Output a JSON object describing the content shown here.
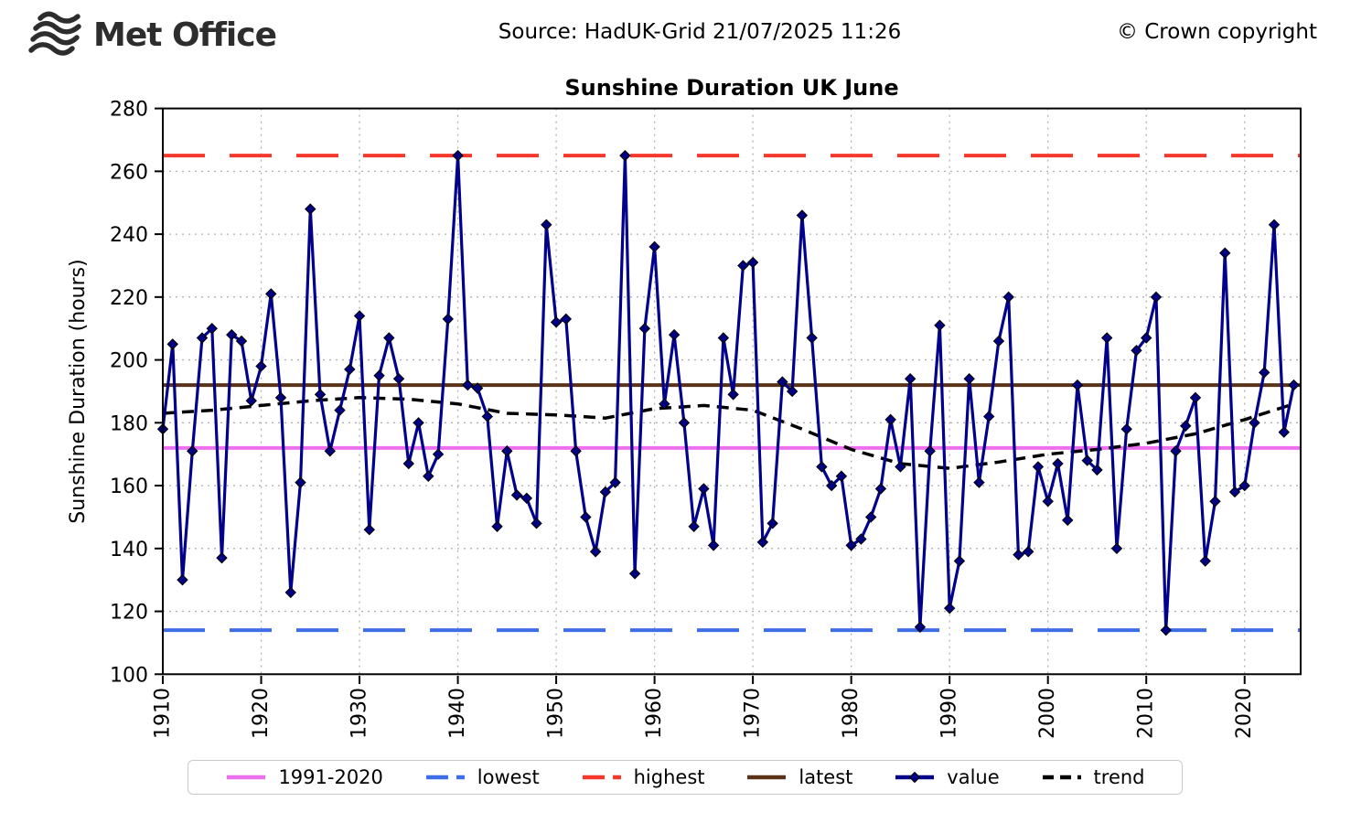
{
  "header": {
    "logo_text": "Met Office",
    "source": "Source: HadUK-Grid 21/07/2025 11:26",
    "copyright": "© Crown copyright"
  },
  "chart_data": {
    "type": "line",
    "title": "Sunshine Duration UK June",
    "ylabel": "Sunshine Duration (hours)",
    "xlabel": "",
    "ylim": [
      100,
      280
    ],
    "xlim": [
      1910,
      2025
    ],
    "yticks": [
      100,
      120,
      140,
      160,
      180,
      200,
      220,
      240,
      260,
      280
    ],
    "xticks": [
      1910,
      1920,
      1930,
      1940,
      1950,
      1960,
      1970,
      1980,
      1990,
      2000,
      2010,
      2020
    ],
    "grid": "dotted",
    "legend_position": "bottom",
    "x_start_year": 1910,
    "series": [
      {
        "name": "value",
        "color": "#00008b",
        "marker": "diamond",
        "values": [
          178,
          205,
          130,
          171,
          207,
          210,
          137,
          208,
          206,
          187,
          198,
          221,
          188,
          126,
          161,
          248,
          189,
          171,
          184,
          197,
          214,
          146,
          195,
          207,
          194,
          167,
          180,
          163,
          170,
          213,
          265,
          192,
          191,
          182,
          147,
          171,
          157,
          156,
          148,
          243,
          212,
          213,
          171,
          150,
          139,
          158,
          161,
          265,
          132,
          210,
          236,
          186,
          208,
          180,
          147,
          159,
          141,
          207,
          189,
          230,
          231,
          142,
          148,
          193,
          190,
          246,
          207,
          166,
          160,
          163,
          141,
          143,
          150,
          159,
          181,
          166,
          194,
          115,
          171,
          211,
          121,
          136,
          194,
          161,
          182,
          206,
          220,
          138,
          139,
          166,
          155,
          167,
          149,
          192,
          168,
          165,
          207,
          140,
          178,
          203,
          207,
          220,
          114,
          171,
          179,
          188,
          136,
          155,
          234,
          158,
          160,
          180,
          196,
          243,
          177,
          192
        ]
      },
      {
        "name": "trend",
        "color": "#000000",
        "style": "dashed",
        "x": [
          1910,
          1915,
          1920,
          1925,
          1930,
          1935,
          1940,
          1945,
          1950,
          1955,
          1960,
          1965,
          1970,
          1975,
          1980,
          1985,
          1990,
          1995,
          2000,
          2005,
          2010,
          2015,
          2020,
          2025
        ],
        "values": [
          183,
          184,
          185.5,
          187,
          188,
          187.5,
          186,
          183,
          182.5,
          181.5,
          184.5,
          185.5,
          184,
          178,
          171.5,
          167,
          165.5,
          167.5,
          170,
          171.5,
          173.5,
          176.5,
          181,
          186
        ]
      }
    ],
    "reference_lines": [
      {
        "name": "1991-2020",
        "value": 172,
        "color": "#ee6fee",
        "style": "solid"
      },
      {
        "name": "lowest",
        "value": 114,
        "color": "#3e6de8",
        "style": "dashed"
      },
      {
        "name": "highest",
        "value": 265,
        "color": "#f4392c",
        "style": "dashed"
      },
      {
        "name": "latest",
        "value": 192,
        "color": "#5a3217",
        "style": "solid"
      }
    ]
  },
  "legend": {
    "items": [
      {
        "label": "1991-2020",
        "color": "#ee6fee",
        "style": "solid"
      },
      {
        "label": "lowest",
        "color": "#3e6de8",
        "style": "dashed"
      },
      {
        "label": "highest",
        "color": "#f4392c",
        "style": "dashed"
      },
      {
        "label": "latest",
        "color": "#5a3217",
        "style": "solid"
      },
      {
        "label": "value",
        "color": "#00008b",
        "style": "marker-line"
      },
      {
        "label": "trend",
        "color": "#000000",
        "style": "short-dashed"
      }
    ]
  },
  "icons": {
    "logo_icon": "met-office-waves-icon"
  },
  "colors": {
    "grid": "#b0b0b0",
    "frame": "#000000",
    "marker_fill": "#000080",
    "text": "#000000"
  }
}
